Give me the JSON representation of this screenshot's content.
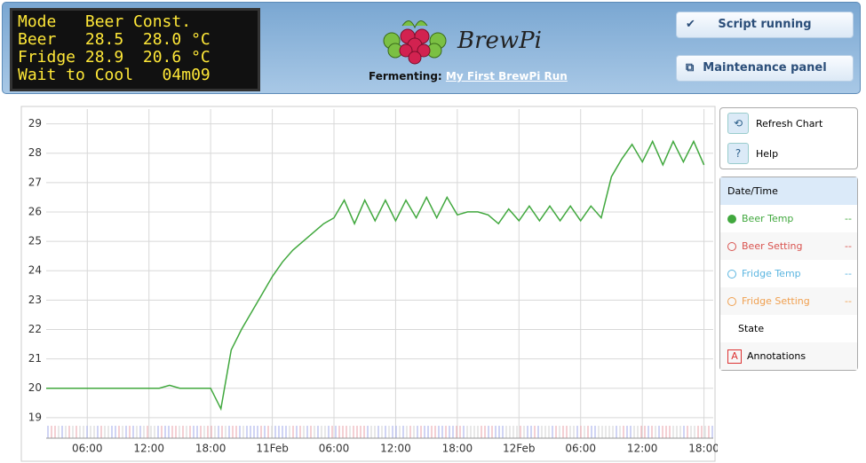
{
  "header": {
    "lcd": [
      "Mode   Beer Const.",
      "Beer   28.5  28.0 °C",
      "Fridge 28.9  20.6 °C",
      "Wait to Cool   04m09"
    ],
    "logo": "BrewPi",
    "fermenting_label": "Fermenting:",
    "beer_name": "My First BrewPi Run",
    "buttons": [
      "Script running",
      "Maintenance panel"
    ]
  },
  "sidebar": {
    "actions": [
      "Refresh Chart",
      "Help"
    ],
    "action_icons": [
      "⟲",
      "?"
    ],
    "date_time": "Date/Time",
    "legend": [
      {
        "name": "Beer Setting",
        "color": "#d9534f",
        "value": "--"
      },
      {
        "name": "Fridge Temp",
        "color": "#5bb5e0",
        "value": "--"
      },
      {
        "name": "Fridge Setting",
        "color": "#f0a050",
        "value": "--"
      }
    ],
    "beer_temp_value": "--",
    "state": "State",
    "annotations_icon": "A",
    "annotations": "Annotations"
  },
  "chart_data": {
    "type": "line",
    "x": [
      0,
      1,
      2,
      3,
      4,
      5,
      6,
      7,
      8,
      9,
      10,
      11,
      12,
      13,
      14,
      15,
      16,
      17,
      18,
      19,
      20,
      21,
      22,
      23,
      24,
      25,
      26,
      27,
      28,
      29,
      30,
      31,
      32,
      33,
      34,
      35,
      36,
      37,
      38,
      39,
      40,
      41,
      42,
      43,
      44,
      45,
      46,
      47,
      48,
      49,
      50,
      51,
      52,
      53,
      54,
      55,
      56,
      57,
      58,
      59,
      60,
      61,
      62,
      63,
      64
    ],
    "series": [
      {
        "name": "Beer Temp",
        "color": "#41a83e",
        "values": [
          20.0,
          20.0,
          20.0,
          20.0,
          20.0,
          20.0,
          20.0,
          20.0,
          20.0,
          20.0,
          20.0,
          20.0,
          20.1,
          20.0,
          20.0,
          20.0,
          20.0,
          19.3,
          21.3,
          22.0,
          22.6,
          23.2,
          23.8,
          24.3,
          24.7,
          25.0,
          25.3,
          25.6,
          25.8,
          26.4,
          25.6,
          26.4,
          25.7,
          26.4,
          25.7,
          26.4,
          25.8,
          26.5,
          25.8,
          26.5,
          25.9,
          26.0,
          26.0,
          25.9,
          25.6,
          26.1,
          25.7,
          26.2,
          25.7,
          26.2,
          25.7,
          26.2,
          25.7,
          26.2,
          25.8,
          27.2,
          27.8,
          28.3,
          27.7,
          28.4,
          27.6,
          28.4,
          27.7,
          28.4,
          27.6
        ]
      }
    ],
    "xlim": [
      0,
      64.9
    ],
    "xticks": [
      {
        "value": 4,
        "label": "06:00"
      },
      {
        "value": 10,
        "label": "12:00"
      },
      {
        "value": 16,
        "label": "18:00"
      },
      {
        "value": 22,
        "label": "11Feb"
      },
      {
        "value": 28,
        "label": "06:00"
      },
      {
        "value": 34,
        "label": "12:00"
      },
      {
        "value": 40,
        "label": "18:00"
      },
      {
        "value": 46,
        "label": "12Feb"
      },
      {
        "value": 52,
        "label": "06:00"
      },
      {
        "value": 58,
        "label": "12:00"
      },
      {
        "value": 64,
        "label": "18:00"
      }
    ],
    "ylim": [
      18.3,
      29.5
    ],
    "yticks": [
      19,
      20,
      21,
      22,
      23,
      24,
      25,
      26,
      27,
      28,
      29
    ],
    "grid": true
  }
}
